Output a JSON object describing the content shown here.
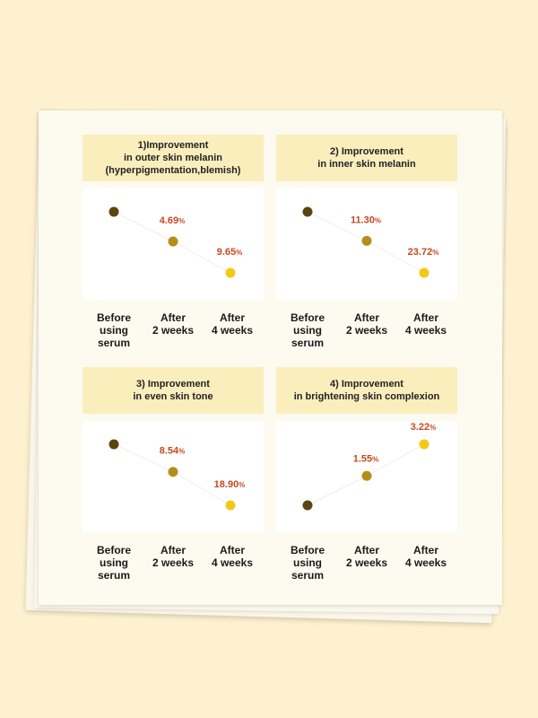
{
  "chart_data": [
    {
      "type": "line",
      "title": "1)Improvement\nin outer skin melanin\n(hyperpigmentation,blemish)",
      "categories": [
        "Before\nusing\nserum",
        "After\n2 weeks",
        "After\n4 weeks"
      ],
      "values": [
        0,
        4.69,
        9.65
      ],
      "labels": [
        "",
        "4.69",
        "9.65"
      ],
      "unit": "%",
      "direction": "down"
    },
    {
      "type": "line",
      "title": "2) Improvement\nin inner skin melanin",
      "categories": [
        "Before\nusing\nserum",
        "After\n2 weeks",
        "After\n4 weeks"
      ],
      "values": [
        0,
        11.3,
        23.72
      ],
      "labels": [
        "",
        "11.30",
        "23.72"
      ],
      "unit": "%",
      "direction": "down"
    },
    {
      "type": "line",
      "title": "3) Improvement\nin even skin tone",
      "categories": [
        "Before\nusing\nserum",
        "After\n2 weeks",
        "After\n4 weeks"
      ],
      "values": [
        0,
        8.54,
        18.9
      ],
      "labels": [
        "",
        "8.54",
        "18.90"
      ],
      "unit": "%",
      "direction": "down"
    },
    {
      "type": "line",
      "title": "4) Improvement\nin brightening skin complexion",
      "categories": [
        "Before\nusing\nserum",
        "After\n2 weeks",
        "After\n4 weeks"
      ],
      "values": [
        0,
        1.55,
        3.22
      ],
      "labels": [
        "",
        "1.55",
        "3.22"
      ],
      "unit": "%",
      "direction": "up"
    }
  ],
  "colors": {
    "point_colors": [
      "#5a4510",
      "#b58e1a",
      "#f3c915"
    ],
    "label_color": "#c8481f",
    "line_color": "#eeeeee"
  }
}
